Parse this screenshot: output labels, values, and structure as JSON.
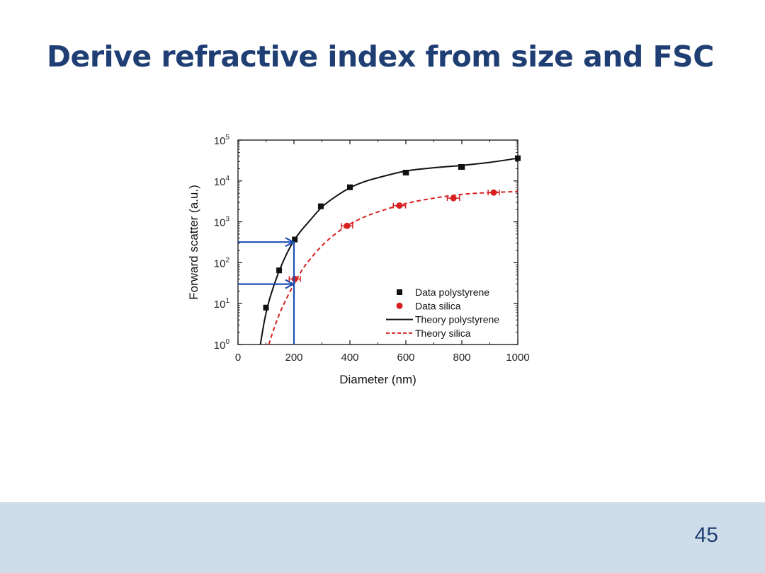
{
  "slide": {
    "title": "Derive refractive index from size and FSC",
    "page_number": "45"
  },
  "colors": {
    "title": "#1f3f74",
    "footer_band": "#cfdcea",
    "polystyrene": "#111111",
    "silica": "#d62020",
    "arrows": "#1f4fb4"
  },
  "chart_data": {
    "type": "scatter",
    "xlabel": "Diameter (nm)",
    "ylabel": "Forward scatter (a.u.)",
    "xlim": [
      0,
      1000
    ],
    "ylim": [
      1,
      100000
    ],
    "yscale": "log",
    "x_ticks": [
      0,
      200,
      400,
      600,
      800,
      1000
    ],
    "x_tick_labels": [
      "0",
      "200",
      "400",
      "600",
      "800",
      "1000"
    ],
    "y_ticks": [
      1,
      10,
      100,
      1000,
      10000,
      100000
    ],
    "y_tick_labels": [
      {
        "base": "10",
        "exp": "0"
      },
      {
        "base": "10",
        "exp": "1"
      },
      {
        "base": "10",
        "exp": "2"
      },
      {
        "base": "10",
        "exp": "3"
      },
      {
        "base": "10",
        "exp": "4"
      },
      {
        "base": "10",
        "exp": "5"
      }
    ],
    "legend_position": "bottom-right",
    "legend": [
      {
        "label": "Data polystyrene",
        "kind": "square"
      },
      {
        "label": "Data silica",
        "kind": "circle"
      },
      {
        "label": "Theory polystyrene",
        "kind": "solid-line"
      },
      {
        "label": "Theory silica",
        "kind": "dashed-line"
      }
    ],
    "series": [
      {
        "name": "Data polystyrene",
        "kind": "points",
        "marker": "square",
        "color": "#111111",
        "points": [
          {
            "x": 100,
            "y": 8,
            "xerr": 4
          },
          {
            "x": 147,
            "y": 65,
            "xerr": 4
          },
          {
            "x": 203,
            "y": 370,
            "xerr": 5
          },
          {
            "x": 296,
            "y": 2400,
            "xerr": 6
          },
          {
            "x": 400,
            "y": 7000,
            "xerr": 7
          },
          {
            "x": 600,
            "y": 16000,
            "xerr": 9
          },
          {
            "x": 799,
            "y": 22000,
            "xerr": 10
          },
          {
            "x": 1000,
            "y": 36000,
            "xerr": 0
          }
        ]
      },
      {
        "name": "Data silica",
        "kind": "points",
        "marker": "circle",
        "color": "#d62020",
        "points": [
          {
            "x": 203,
            "y": 40,
            "xerr": 20
          },
          {
            "x": 390,
            "y": 800,
            "xerr": 20
          },
          {
            "x": 577,
            "y": 2500,
            "xerr": 22
          },
          {
            "x": 770,
            "y": 3800,
            "xerr": 22
          },
          {
            "x": 914,
            "y": 5200,
            "xerr": 20
          }
        ]
      },
      {
        "name": "Theory polystyrene",
        "kind": "line",
        "dash": "solid",
        "color": "#111111",
        "x": [
          80,
          95,
          110,
          130,
          150,
          175,
          200,
          225,
          250,
          300,
          350,
          400,
          450,
          500,
          600,
          700,
          800,
          900,
          1000
        ],
        "y": [
          1,
          4,
          11,
          30,
          70,
          170,
          350,
          600,
          950,
          2300,
          4200,
          6800,
          9500,
          12000,
          17500,
          21000,
          24000,
          28500,
          36000
        ]
      },
      {
        "name": "Theory silica",
        "kind": "line",
        "dash": "dashed",
        "color": "#d62020",
        "x": [
          110,
          130,
          150,
          175,
          200,
          225,
          250,
          300,
          350,
          400,
          450,
          500,
          600,
          700,
          800,
          900,
          1000
        ],
        "y": [
          1,
          2.6,
          6,
          14,
          30,
          60,
          105,
          260,
          520,
          880,
          1300,
          1750,
          2800,
          3800,
          4700,
          5200,
          5500
        ]
      }
    ],
    "annotations": [
      {
        "kind": "arrow",
        "from": {
          "x": 0,
          "y": 320
        },
        "to": {
          "x": 200,
          "y": 320
        }
      },
      {
        "kind": "arrow",
        "from": {
          "x": 0,
          "y": 30
        },
        "to": {
          "x": 200,
          "y": 30
        }
      },
      {
        "kind": "vertical-line",
        "x": 200,
        "y_from": 1,
        "y_to": 320
      }
    ]
  }
}
